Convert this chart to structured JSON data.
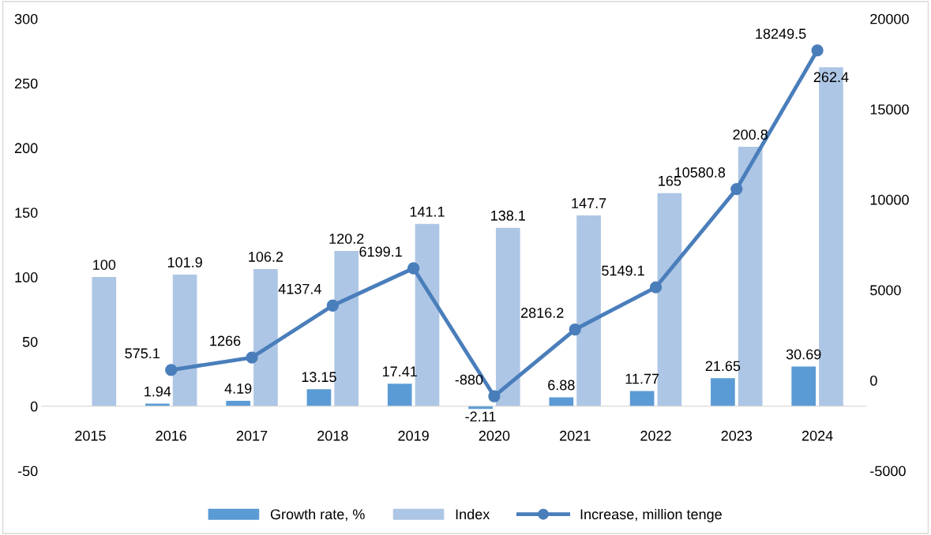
{
  "chart_data": {
    "type": "bar",
    "categories": [
      "2015",
      "2016",
      "2017",
      "2018",
      "2019",
      "2020",
      "2021",
      "2022",
      "2023",
      "2024"
    ],
    "series": [
      {
        "name": "Growth rate, %",
        "color": "#5b9bd5",
        "values": [
          null,
          1.94,
          4.19,
          13.15,
          17.41,
          -2.11,
          6.88,
          11.77,
          21.65,
          30.69
        ]
      },
      {
        "name": "Index",
        "color": "#adc6e5",
        "values": [
          100,
          101.9,
          106.2,
          120.2,
          141.1,
          138.1,
          147.7,
          165,
          200.8,
          262.4
        ]
      },
      {
        "name": "Increase, million tenge",
        "type": "line",
        "axis": "y2",
        "color": "#4a7ebb",
        "values": [
          null,
          575.1,
          1266,
          4137.4,
          6199.1,
          -880,
          2816.2,
          5149.1,
          10580.8,
          18249.5
        ]
      }
    ],
    "ylim": [
      -50,
      300
    ],
    "yticks": [
      -50,
      0,
      50,
      100,
      150,
      200,
      250,
      300
    ],
    "y2lim": [
      -5000,
      20000
    ],
    "y2ticks": [
      -5000,
      0,
      5000,
      10000,
      15000,
      20000
    ],
    "data_labels": true,
    "legend": "bottom",
    "grid": false,
    "marker": "circle",
    "line_style": "solid"
  }
}
